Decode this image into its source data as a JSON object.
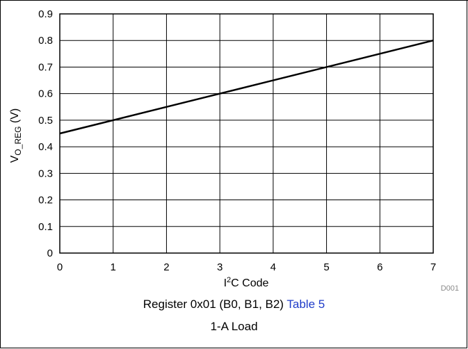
{
  "chart_data": {
    "type": "line",
    "x": [
      0,
      7
    ],
    "series": [
      {
        "values": [
          0.45,
          0.8
        ]
      }
    ],
    "xticks": [
      "0",
      "1",
      "2",
      "3",
      "4",
      "5",
      "6",
      "7"
    ],
    "yticks": [
      "0",
      "0.1",
      "0.2",
      "0.3",
      "0.4",
      "0.5",
      "0.6",
      "0.7",
      "0.8",
      "0.9"
    ],
    "xlim": [
      0,
      7
    ],
    "ylim": [
      0,
      0.9
    ],
    "xlabel_main": "I",
    "xlabel_sup": "2",
    "xlabel_rest": "C Code",
    "ylabel_main": "V",
    "ylabel_sub": "O_REG",
    "ylabel_rest": " (V)",
    "grid": true,
    "code": "D001",
    "line_color": "#000000"
  },
  "caption": {
    "line1_text": "Register 0x01 (B0, B1, B2) ",
    "line1_link": "Table 5",
    "line2": "1-A Load",
    "link_color": "#1f3cc9"
  }
}
